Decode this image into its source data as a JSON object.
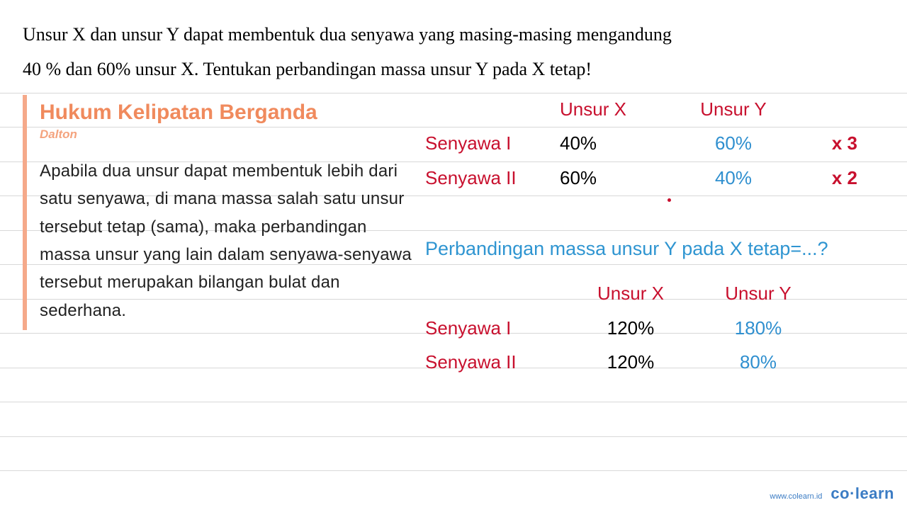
{
  "problem": {
    "line1": "Unsur X dan unsur Y dapat membentuk dua senyawa yang masing-masing mengandung",
    "line2": "40 % dan 60% unsur X. Tentukan perbandingan massa unsur Y pada X tetap!"
  },
  "law_panel": {
    "title": "Hukum Kelipatan Berganda",
    "subtitle": "Dalton",
    "body": "Apabila dua unsur dapat membentuk lebih dari satu senyawa, di mana massa salah satu unsur tersebut tetap (sama), maka perbandingan massa unsur yang lain dalam senyawa-senyawa tersebut merupakan bilangan bulat dan sederhana."
  },
  "table1": {
    "header_x": "Unsur X",
    "header_y": "Unsur Y",
    "rows": [
      {
        "label": "Senyawa I",
        "x": "40%",
        "y": "60%",
        "mult": "x 3"
      },
      {
        "label": "Senyawa II",
        "x": "60%",
        "y": "40%",
        "mult": "x 2"
      }
    ]
  },
  "question": "Perbandingan massa unsur Y pada X tetap=...?",
  "table2": {
    "header_x": "Unsur X",
    "header_y": "Unsur Y",
    "rows": [
      {
        "label": "Senyawa I",
        "x": "120%",
        "y": "180%"
      },
      {
        "label": "Senyawa II",
        "x": "120%",
        "y": "80%"
      }
    ]
  },
  "footer": {
    "url": "www.colearn.id",
    "logo": "co·learn"
  },
  "colors": {
    "rule": "#d8d8d8",
    "accent_orange": "#f08a5d",
    "accent_border": "#f5a98a",
    "red": "#c8102e",
    "blue": "#2f8fcf",
    "link_blue": "#3b7cc4",
    "text": "#000000"
  }
}
